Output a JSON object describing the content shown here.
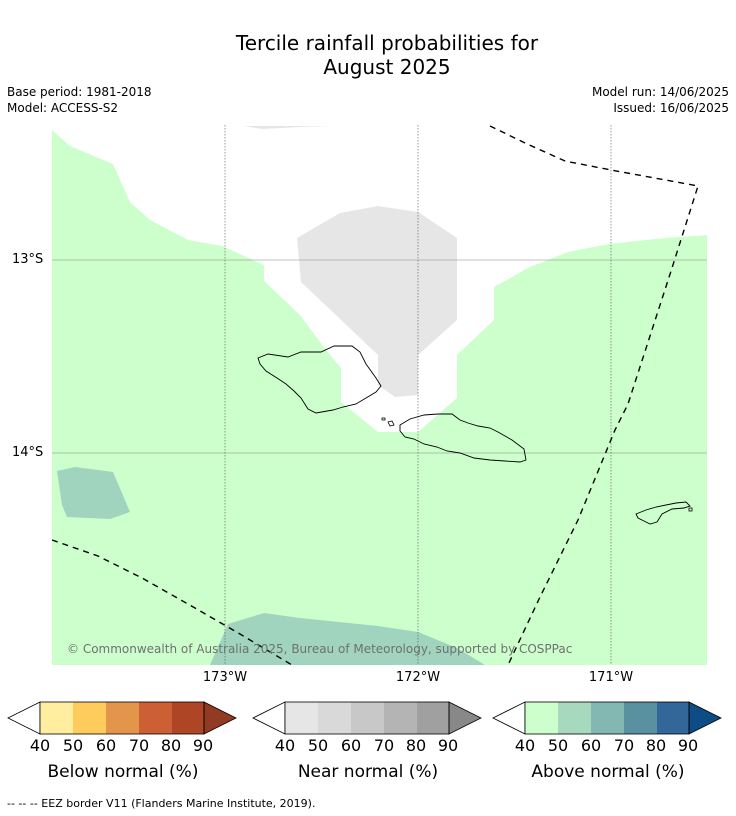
{
  "title_line1": "Tercile rainfall probabilities for",
  "title_line2": "August 2025",
  "base_period": "Base period: 1981-2018",
  "model": "Model: ACCESS-S2",
  "model_run": "Model run: 14/06/2025",
  "issued": "Issued: 16/06/2025",
  "lat_labels": [
    "13°S",
    "14°S"
  ],
  "lon_labels": [
    "173°W",
    "172°W",
    "171°W"
  ],
  "copyright": "© Commonwealth of Australia 2025, Bureau of Meteorology, supported by COSPPac",
  "colorbars": [
    {
      "label": "Below normal (%)",
      "ticks": [
        "40",
        "50",
        "60",
        "70",
        "80",
        "90"
      ],
      "colors": [
        "#ffeda0",
        "#fecc5c",
        "#e3954b",
        "#cc5f33",
        "#ae4626",
        "#923a23"
      ]
    },
    {
      "label": "Near normal (%)",
      "ticks": [
        "40",
        "50",
        "60",
        "70",
        "80",
        "90"
      ],
      "colors": [
        "#e6e6e6",
        "#d9d9d9",
        "#c8c8c8",
        "#b4b4b4",
        "#a0a0a0",
        "#888888"
      ]
    },
    {
      "label": "Above normal (%)",
      "ticks": [
        "40",
        "50",
        "60",
        "70",
        "80",
        "90"
      ],
      "colors": [
        "#ccffcc",
        "#a6d9bd",
        "#82b8b1",
        "#5a91a0",
        "#336699",
        "#0d4c85"
      ]
    }
  ],
  "eez_note": "--  --  -- EEZ border V11 (Flanders Marine Institute, 2019).",
  "colors": {
    "above_40_50": "#ccffcc",
    "above_50_60": "#a0d4be",
    "near_40_50": "#e6e6e6",
    "eez_line": "#000000"
  }
}
